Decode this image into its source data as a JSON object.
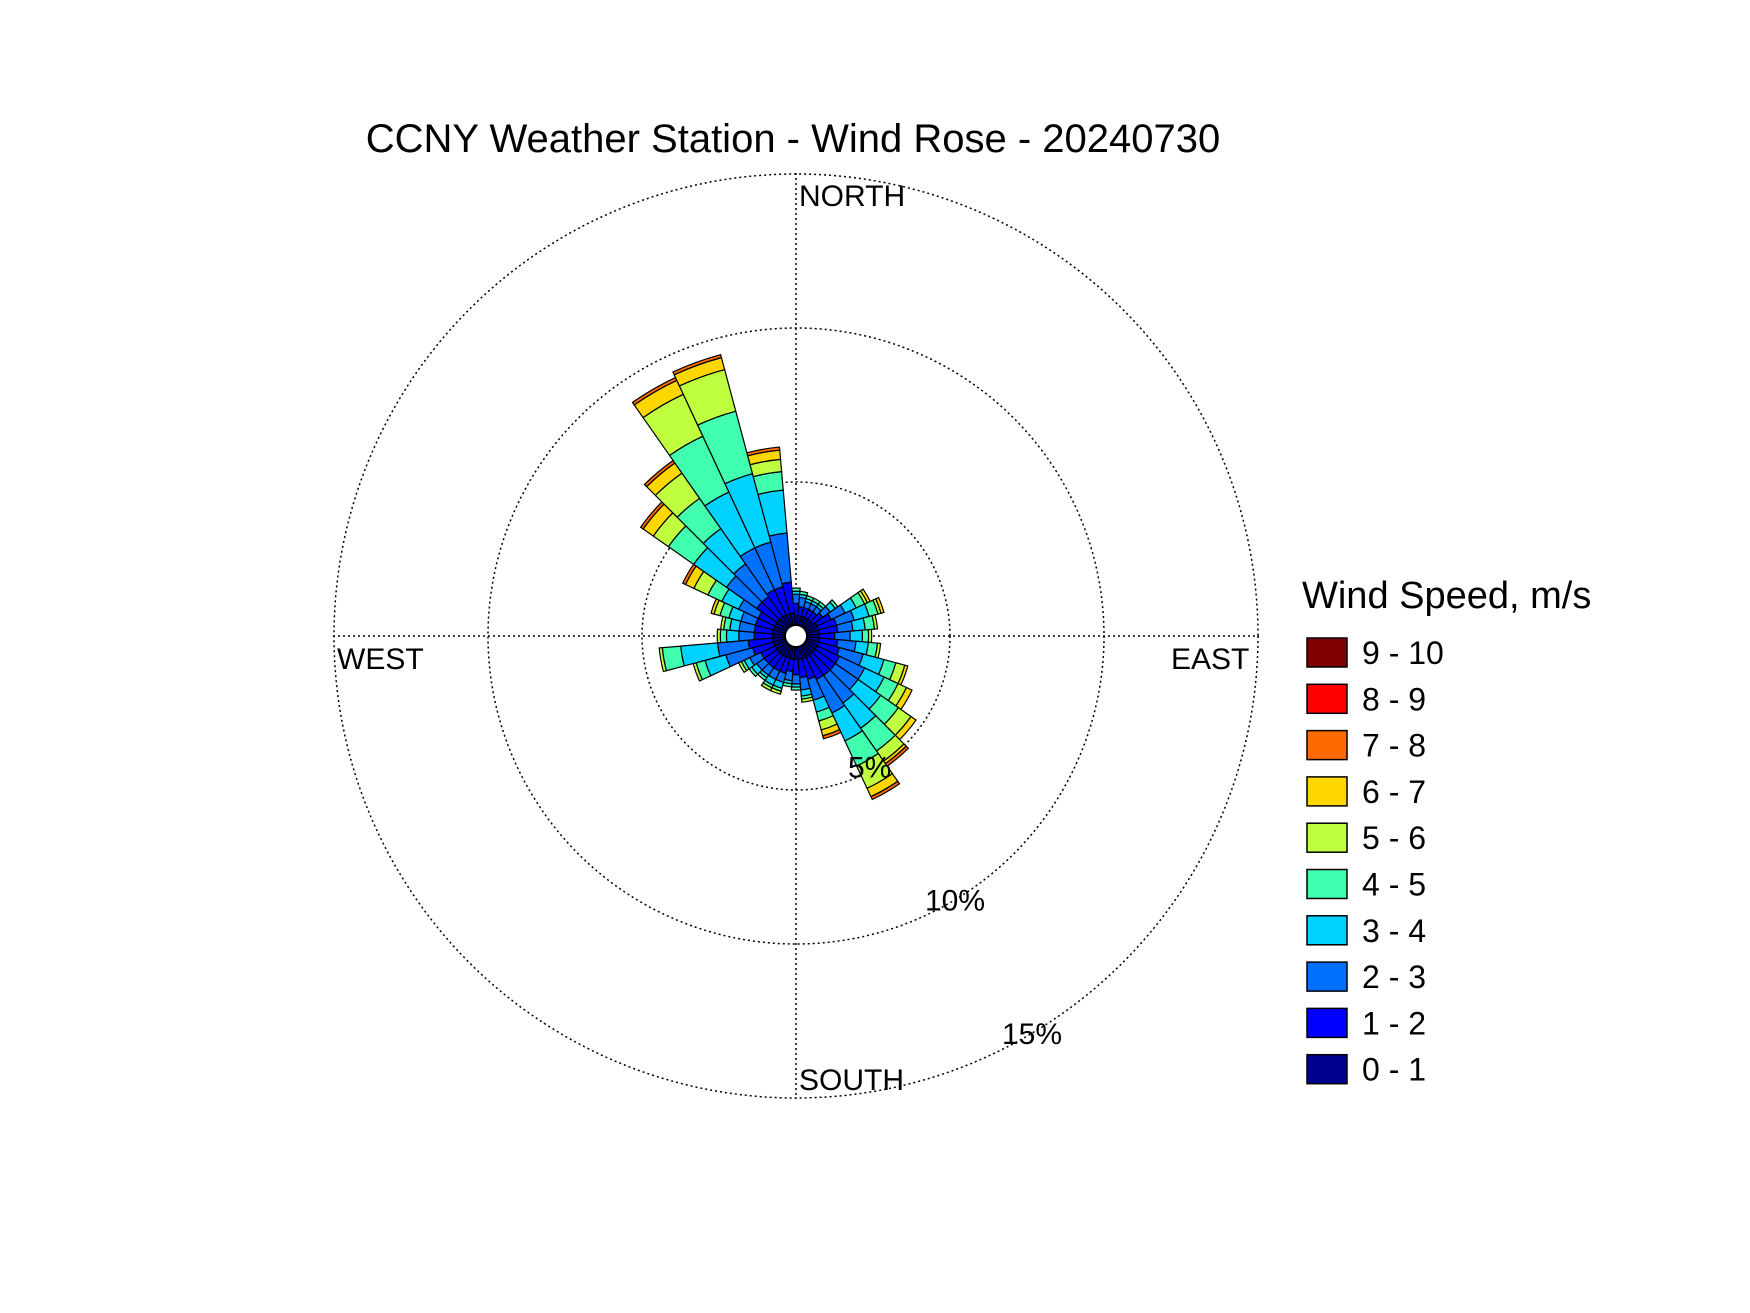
{
  "chart_data": {
    "type": "wind-rose",
    "title": "CCNY Weather Station - Wind Rose - 20240730",
    "direction_labels": {
      "north": "NORTH",
      "east": "EAST",
      "south": "SOUTH",
      "west": "WEST"
    },
    "radial_ticks": [
      {
        "value": 5,
        "label": "5%"
      },
      {
        "value": 10,
        "label": "10%"
      },
      {
        "value": 15,
        "label": "15%"
      }
    ],
    "rlim": [
      0,
      15
    ],
    "grid": true,
    "legend": {
      "title": "Wind Speed, m/s",
      "placement": "right",
      "bins": [
        {
          "label": "9 - 10",
          "color": "#7f0000"
        },
        {
          "label": "8 - 9",
          "color": "#ff0000"
        },
        {
          "label": "7 - 8",
          "color": "#ff6a00"
        },
        {
          "label": "6 - 7",
          "color": "#ffd700"
        },
        {
          "label": "5 - 6",
          "color": "#bfff40"
        },
        {
          "label": "4 - 5",
          "color": "#40ffaf"
        },
        {
          "label": "3 - 4",
          "color": "#00d2ff"
        },
        {
          "label": "2 - 3",
          "color": "#0070ff"
        },
        {
          "label": "1 - 2",
          "color": "#0000ff"
        },
        {
          "label": "0 - 1",
          "color": "#00008f"
        }
      ]
    },
    "sector_width_deg": 10,
    "stack_order": [
      "0 - 1",
      "1 - 2",
      "2 - 3",
      "3 - 4",
      "4 - 5",
      "5 - 6",
      "6 - 7",
      "7 - 8",
      "8 - 9",
      "9 - 10"
    ],
    "sectors": [
      {
        "dir": 0,
        "values": [
          0.3,
          0.4,
          0.3,
          0.1,
          0.1,
          0,
          0,
          0,
          0,
          0
        ]
      },
      {
        "dir": 10,
        "values": [
          0.3,
          0.3,
          0.3,
          0.1,
          0.1,
          0,
          0,
          0,
          0,
          0
        ]
      },
      {
        "dir": 20,
        "values": [
          0.3,
          0.3,
          0.2,
          0.1,
          0.1,
          0,
          0,
          0,
          0,
          0
        ]
      },
      {
        "dir": 30,
        "values": [
          0.3,
          0.3,
          0.2,
          0.1,
          0.1,
          0,
          0,
          0,
          0,
          0
        ]
      },
      {
        "dir": 40,
        "values": [
          0.3,
          0.3,
          0.2,
          0.1,
          0.1,
          0,
          0,
          0,
          0,
          0
        ]
      },
      {
        "dir": 50,
        "values": [
          0.3,
          0.4,
          0.3,
          0.2,
          0.1,
          0,
          0,
          0,
          0,
          0
        ]
      },
      {
        "dir": 60,
        "values": [
          0.4,
          0.5,
          0.5,
          0.4,
          0.3,
          0.1,
          0.1,
          0,
          0,
          0
        ]
      },
      {
        "dir": 70,
        "values": [
          0.4,
          0.6,
          0.6,
          0.5,
          0.3,
          0.1,
          0.1,
          0,
          0,
          0
        ]
      },
      {
        "dir": 80,
        "values": [
          0.4,
          0.6,
          0.5,
          0.4,
          0.3,
          0.1,
          0,
          0,
          0,
          0
        ]
      },
      {
        "dir": 90,
        "values": [
          0.4,
          0.5,
          0.5,
          0.4,
          0.2,
          0.1,
          0,
          0,
          0,
          0
        ]
      },
      {
        "dir": 100,
        "values": [
          0.4,
          0.6,
          0.6,
          0.4,
          0.3,
          0.1,
          0,
          0,
          0,
          0
        ]
      },
      {
        "dir": 110,
        "values": [
          0.4,
          0.7,
          0.8,
          0.7,
          0.4,
          0.3,
          0.1,
          0,
          0,
          0
        ]
      },
      {
        "dir": 120,
        "values": [
          0.4,
          0.8,
          0.9,
          0.7,
          0.5,
          0.3,
          0.2,
          0,
          0,
          0
        ]
      },
      {
        "dir": 130,
        "values": [
          0.4,
          0.8,
          0.9,
          0.9,
          0.7,
          0.5,
          0.2,
          0,
          0,
          0
        ]
      },
      {
        "dir": 140,
        "values": [
          0.4,
          0.8,
          1.1,
          1.0,
          0.9,
          0.4,
          0.1,
          0.1,
          0,
          0
        ]
      },
      {
        "dir": 150,
        "values": [
          0.4,
          0.8,
          1.2,
          1.0,
          0.9,
          0.8,
          0.3,
          0.1,
          0,
          0
        ]
      },
      {
        "dir": 160,
        "values": [
          0.4,
          0.7,
          0.7,
          0.4,
          0.3,
          0.3,
          0.2,
          0.1,
          0,
          0
        ]
      },
      {
        "dir": 170,
        "values": [
          0.4,
          0.6,
          0.4,
          0.2,
          0.1,
          0.1,
          0,
          0,
          0,
          0
        ]
      },
      {
        "dir": 180,
        "values": [
          0.4,
          0.5,
          0.3,
          0.1,
          0.1,
          0,
          0,
          0,
          0,
          0
        ]
      },
      {
        "dir": 190,
        "values": [
          0.4,
          0.4,
          0.3,
          0.1,
          0.1,
          0,
          0,
          0,
          0,
          0
        ]
      },
      {
        "dir": 200,
        "values": [
          0.4,
          0.5,
          0.3,
          0.2,
          0.1,
          0.1,
          0,
          0,
          0,
          0
        ]
      },
      {
        "dir": 210,
        "values": [
          0.4,
          0.5,
          0.3,
          0.2,
          0.1,
          0.1,
          0,
          0,
          0,
          0
        ]
      },
      {
        "dir": 220,
        "values": [
          0.4,
          0.5,
          0.3,
          0.1,
          0.1,
          0,
          0,
          0,
          0,
          0
        ]
      },
      {
        "dir": 230,
        "values": [
          0.4,
          0.5,
          0.3,
          0.2,
          0.1,
          0,
          0,
          0,
          0,
          0
        ]
      },
      {
        "dir": 240,
        "values": [
          0.4,
          0.5,
          0.4,
          0.2,
          0.1,
          0.1,
          0,
          0,
          0,
          0
        ]
      },
      {
        "dir": 250,
        "values": [
          0.4,
          0.7,
          0.9,
          0.7,
          0.3,
          0.1,
          0,
          0,
          0,
          0
        ]
      },
      {
        "dir": 260,
        "values": [
          0.4,
          0.8,
          1.0,
          1.2,
          0.6,
          0.1,
          0,
          0,
          0,
          0
        ]
      },
      {
        "dir": 270,
        "values": [
          0.4,
          0.6,
          0.5,
          0.4,
          0.2,
          0.1,
          0,
          0,
          0,
          0
        ]
      },
      {
        "dir": 280,
        "values": [
          0.4,
          0.6,
          0.5,
          0.3,
          0.2,
          0.1,
          0,
          0,
          0,
          0
        ]
      },
      {
        "dir": 290,
        "values": [
          0.4,
          0.6,
          0.5,
          0.4,
          0.3,
          0.2,
          0.1,
          0,
          0,
          0
        ]
      },
      {
        "dir": 300,
        "values": [
          0.4,
          0.6,
          0.7,
          0.6,
          0.5,
          0.5,
          0.3,
          0.1,
          0,
          0
        ]
      },
      {
        "dir": 310,
        "values": [
          0.4,
          0.8,
          1.2,
          1.3,
          1.0,
          0.6,
          0.4,
          0.1,
          0,
          0
        ]
      },
      {
        "dir": 320,
        "values": [
          0.4,
          0.8,
          1.3,
          1.4,
          1.2,
          1.0,
          0.4,
          0.1,
          0,
          0
        ]
      },
      {
        "dir": 330,
        "values": [
          0.4,
          0.9,
          1.5,
          2.0,
          2.0,
          1.5,
          0.5,
          0.1,
          0,
          0
        ]
      },
      {
        "dir": 340,
        "values": [
          0.4,
          0.9,
          1.5,
          2.3,
          2.1,
          1.4,
          0.4,
          0.1,
          0,
          0
        ]
      },
      {
        "dir": 350,
        "values": [
          0.4,
          1.0,
          1.6,
          1.4,
          0.6,
          0.4,
          0.3,
          0.1,
          0,
          0
        ]
      }
    ]
  }
}
